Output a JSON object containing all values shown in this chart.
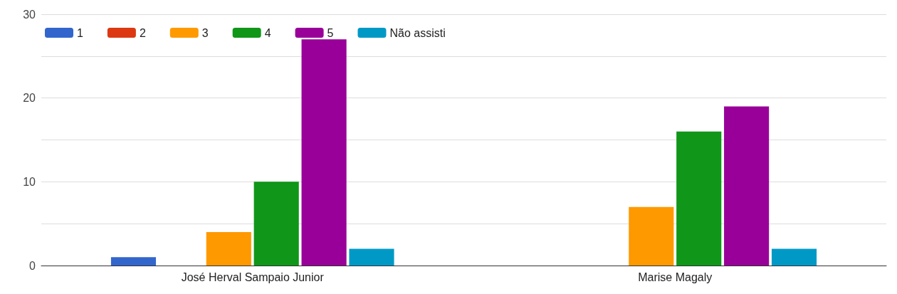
{
  "chart_data": {
    "type": "bar",
    "categories": [
      "José Herval Sampaio Junior",
      "Marise Magaly"
    ],
    "series": [
      {
        "name": "1",
        "color": "#3366cc",
        "values": [
          1,
          0
        ]
      },
      {
        "name": "2",
        "color": "#dc3912",
        "values": [
          0,
          0
        ]
      },
      {
        "name": "3",
        "color": "#ff9900",
        "values": [
          4,
          7
        ]
      },
      {
        "name": "4",
        "color": "#109618",
        "values": [
          10,
          16
        ]
      },
      {
        "name": "5",
        "color": "#990099",
        "values": [
          27,
          19
        ]
      },
      {
        "name": "Não assisti",
        "color": "#0099c6",
        "values": [
          2,
          2
        ]
      }
    ],
    "ylim": [
      0,
      30
    ],
    "yticks": [
      0,
      {
        "value": 5,
        "label": null
      },
      10,
      {
        "value": 15,
        "label": null
      },
      20,
      {
        "value": 25,
        "label": null
      },
      30
    ],
    "grid": "y",
    "legend": "top left"
  }
}
